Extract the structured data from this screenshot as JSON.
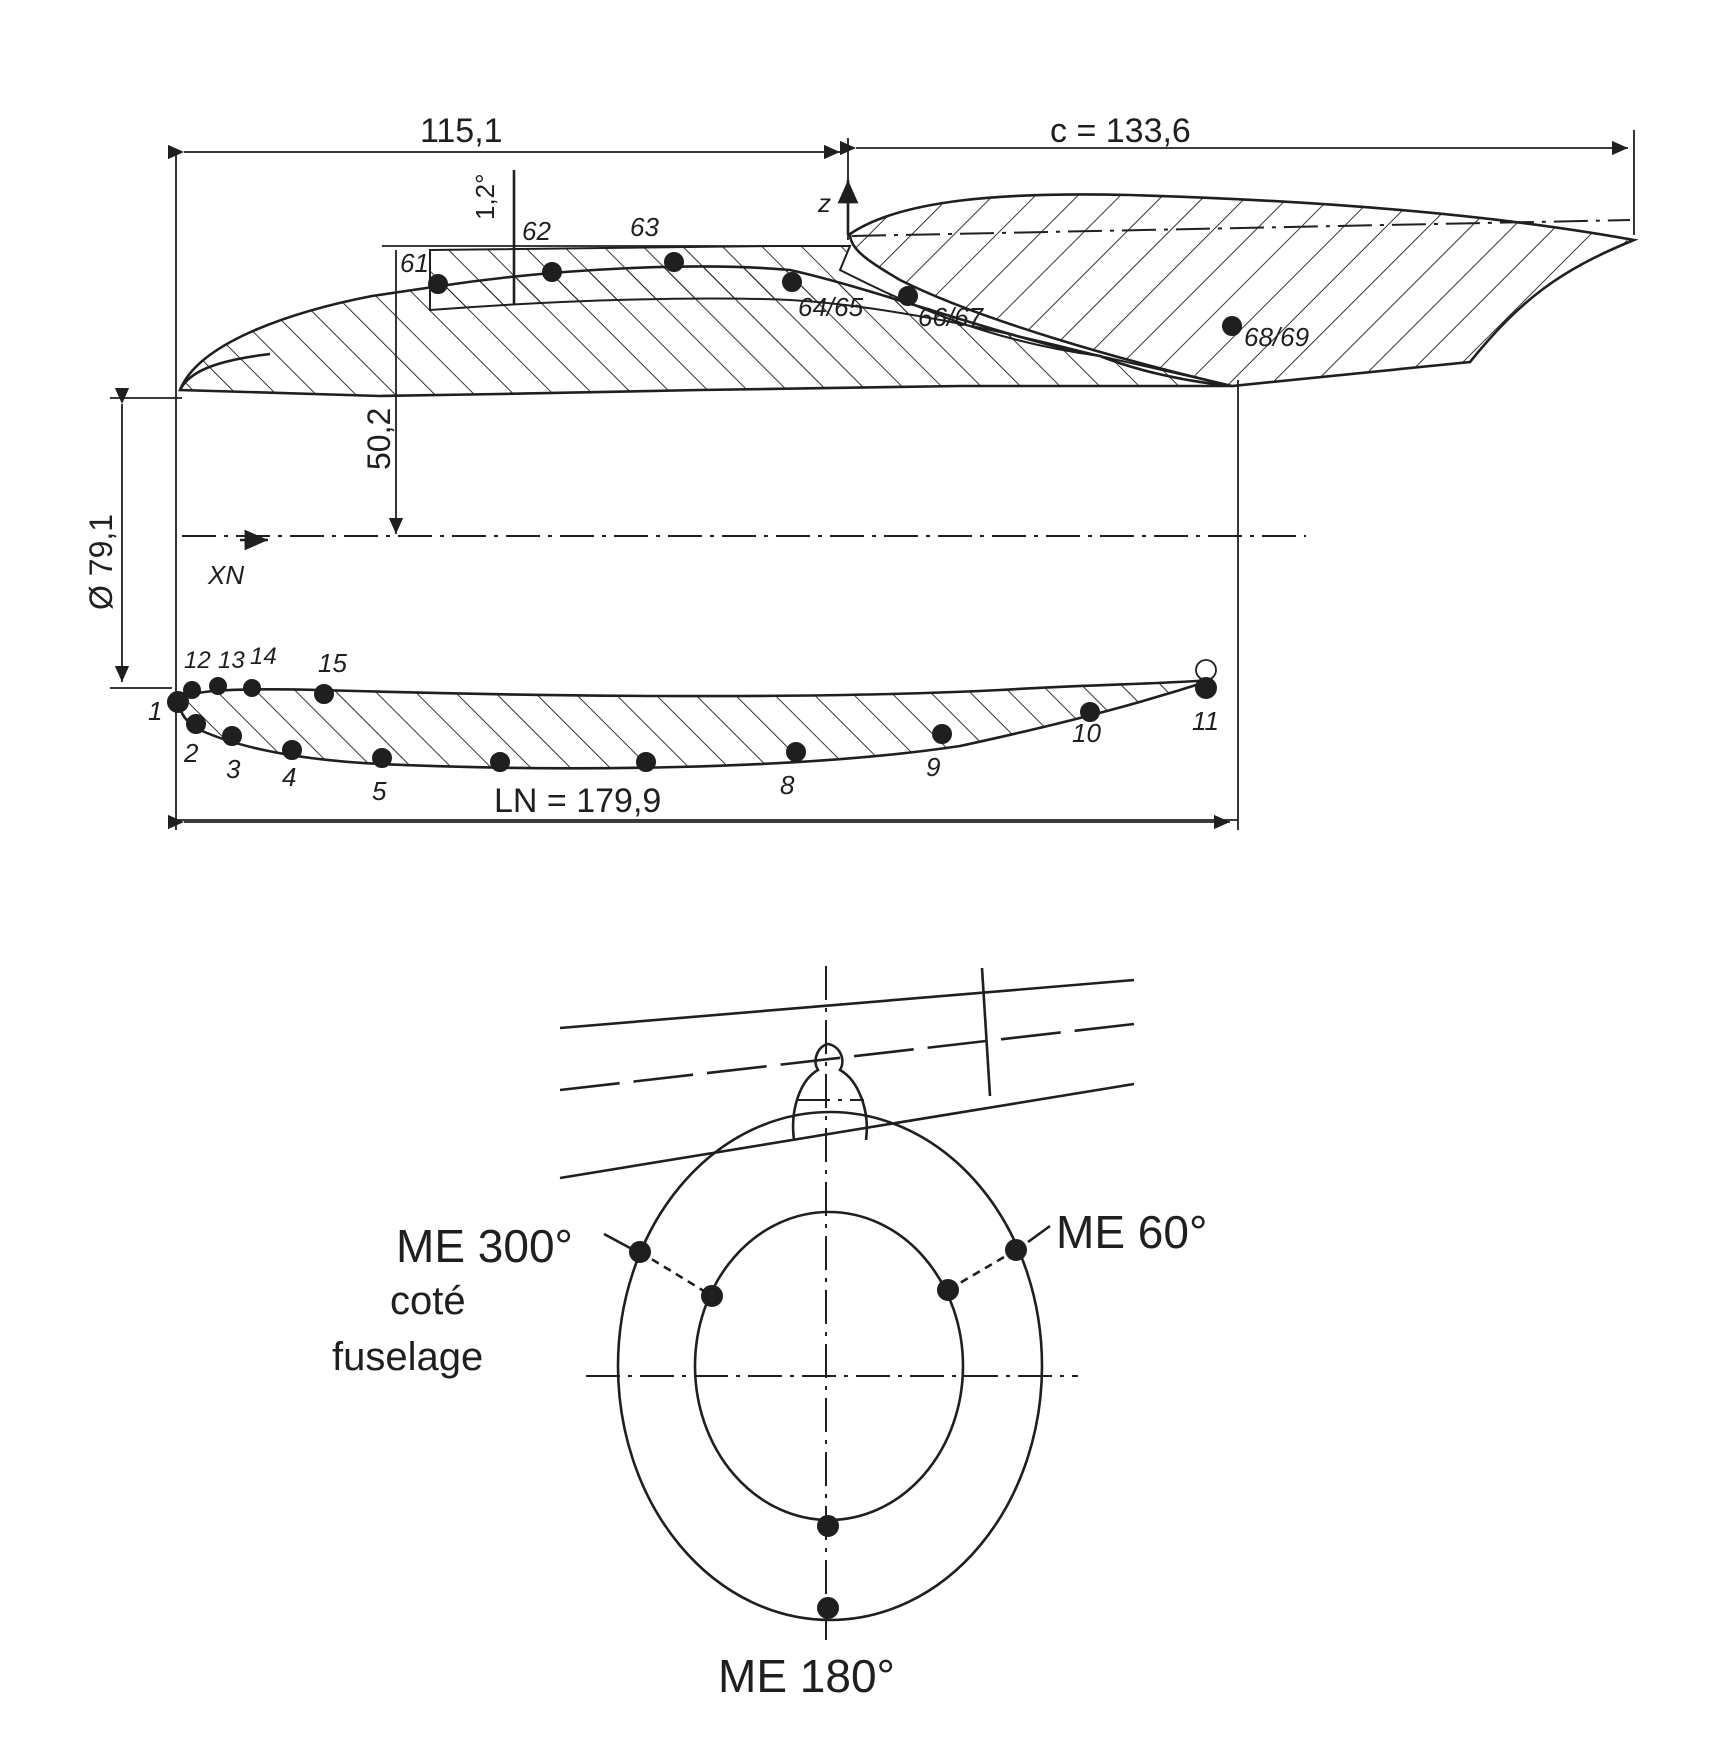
{
  "dimensions": {
    "d1": "115,1",
    "chord": "c = 133,6",
    "angle": "1,2°",
    "height": "50,2",
    "diameter": "Ø 79,1",
    "length": "LN = 179,9"
  },
  "axes": {
    "z": "z",
    "xn": "XN"
  },
  "taps_upper": [
    "61",
    "62",
    "63",
    "64/65",
    "66/67",
    "68/69"
  ],
  "taps_lower": [
    "1",
    "2",
    "3",
    "4",
    "5",
    "8",
    "9",
    "10",
    "11",
    "12",
    "13",
    "14",
    "15"
  ],
  "section": {
    "me300": "ME 300°",
    "me60": "ME 60°",
    "me180": "ME 180°",
    "side_note_line1": "coté",
    "side_note_line2": "fuselage"
  }
}
